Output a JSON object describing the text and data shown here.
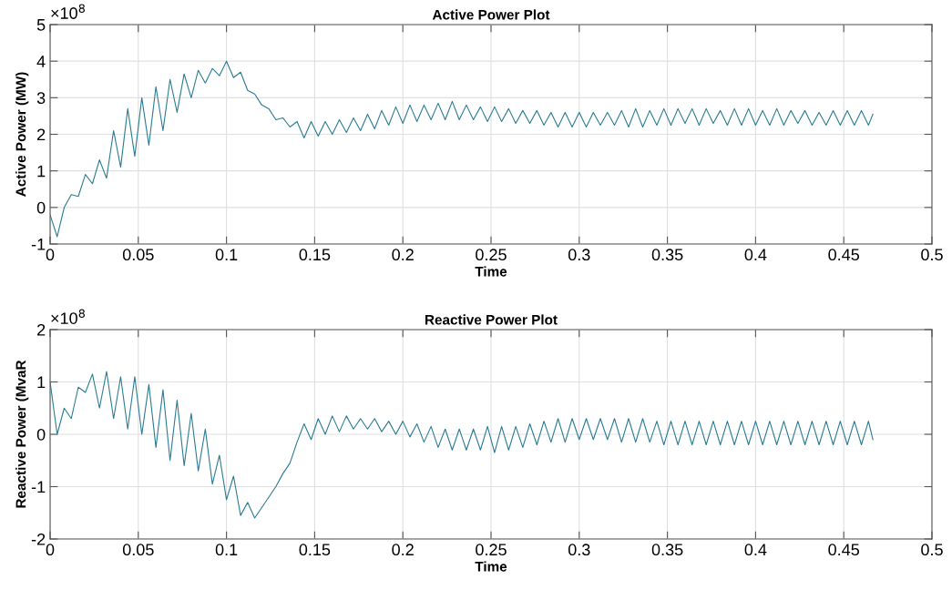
{
  "chart_data": [
    {
      "type": "line",
      "title": "Active Power Plot",
      "xlabel": "Time",
      "ylabel": "Active Power (MW)",
      "annotations": [
        "×10$^{8}$"
      ],
      "grid": true,
      "xlim": [
        0,
        0.5
      ],
      "xticks": [
        0,
        0.05,
        0.1,
        0.15,
        0.2,
        0.25,
        0.3,
        0.35,
        0.4,
        0.45,
        0.5
      ],
      "ylim": [
        -1,
        5
      ],
      "yticks": [
        -1,
        0,
        1,
        2,
        3,
        4,
        5
      ],
      "x": [
        0,
        0.004,
        0.008,
        0.012,
        0.016,
        0.02,
        0.024,
        0.028,
        0.032,
        0.036,
        0.04,
        0.044,
        0.048,
        0.052,
        0.056,
        0.06,
        0.064,
        0.068,
        0.072,
        0.076,
        0.08,
        0.084,
        0.088,
        0.092,
        0.096,
        0.1,
        0.104,
        0.108,
        0.112,
        0.116,
        0.12,
        0.124,
        0.128,
        0.132,
        0.136,
        0.14,
        0.144,
        0.148,
        0.152,
        0.156,
        0.16,
        0.164,
        0.168,
        0.172,
        0.176,
        0.18,
        0.184,
        0.188,
        0.192,
        0.196,
        0.2,
        0.204,
        0.208,
        0.212,
        0.216,
        0.22,
        0.224,
        0.228,
        0.232,
        0.236,
        0.24,
        0.244,
        0.248,
        0.252,
        0.256,
        0.26,
        0.264,
        0.268,
        0.272,
        0.276,
        0.28,
        0.284,
        0.288,
        0.292,
        0.296,
        0.3,
        0.304,
        0.308,
        0.312,
        0.316,
        0.32,
        0.324,
        0.328,
        0.332,
        0.336,
        0.34,
        0.344,
        0.348,
        0.352,
        0.356,
        0.36,
        0.364,
        0.368,
        0.372,
        0.376,
        0.38,
        0.384,
        0.388,
        0.392,
        0.396,
        0.4,
        0.404,
        0.408,
        0.412,
        0.416,
        0.42,
        0.424,
        0.428,
        0.432,
        0.436,
        0.44,
        0.444,
        0.448,
        0.452,
        0.456,
        0.46,
        0.464,
        0.4665
      ],
      "series": [
        {
          "color": "#2a7d94",
          "values": [
            -0.2,
            -0.8,
            0.0,
            0.35,
            0.3,
            0.9,
            0.65,
            1.3,
            0.8,
            2.1,
            1.1,
            2.7,
            1.4,
            3.0,
            1.7,
            3.3,
            2.1,
            3.5,
            2.6,
            3.65,
            3.0,
            3.75,
            3.4,
            3.8,
            3.6,
            4.0,
            3.55,
            3.7,
            3.2,
            3.1,
            2.8,
            2.7,
            2.4,
            2.45,
            2.2,
            2.35,
            1.9,
            2.35,
            1.95,
            2.35,
            2.0,
            2.4,
            2.05,
            2.45,
            2.1,
            2.55,
            2.15,
            2.65,
            2.25,
            2.75,
            2.3,
            2.8,
            2.35,
            2.8,
            2.4,
            2.85,
            2.4,
            2.9,
            2.4,
            2.8,
            2.4,
            2.75,
            2.35,
            2.75,
            2.35,
            2.7,
            2.3,
            2.65,
            2.3,
            2.65,
            2.25,
            2.6,
            2.2,
            2.6,
            2.2,
            2.6,
            2.2,
            2.6,
            2.25,
            2.6,
            2.25,
            2.65,
            2.2,
            2.7,
            2.2,
            2.65,
            2.25,
            2.7,
            2.25,
            2.7,
            2.3,
            2.7,
            2.25,
            2.7,
            2.3,
            2.65,
            2.25,
            2.7,
            2.25,
            2.7,
            2.25,
            2.65,
            2.25,
            2.7,
            2.25,
            2.65,
            2.3,
            2.65,
            2.25,
            2.6,
            2.25,
            2.65,
            2.25,
            2.65,
            2.25,
            2.65,
            2.25,
            2.55
          ]
        }
      ]
    },
    {
      "type": "line",
      "title": "Reactive Power Plot",
      "xlabel": "Time",
      "ylabel": "Reactive Power (MvaR",
      "annotations": [
        "×10$^{8}$"
      ],
      "grid": true,
      "xlim": [
        0,
        0.5
      ],
      "xticks": [
        0,
        0.05,
        0.1,
        0.15,
        0.2,
        0.25,
        0.3,
        0.35,
        0.4,
        0.45,
        0.5
      ],
      "ylim": [
        -2,
        2
      ],
      "yticks": [
        -2,
        -1,
        0,
        1,
        2
      ],
      "x": [
        0,
        0.004,
        0.008,
        0.012,
        0.016,
        0.02,
        0.024,
        0.028,
        0.032,
        0.036,
        0.04,
        0.044,
        0.048,
        0.052,
        0.056,
        0.06,
        0.064,
        0.068,
        0.072,
        0.076,
        0.08,
        0.084,
        0.088,
        0.092,
        0.096,
        0.1,
        0.104,
        0.108,
        0.112,
        0.116,
        0.12,
        0.124,
        0.128,
        0.132,
        0.136,
        0.14,
        0.144,
        0.148,
        0.152,
        0.156,
        0.16,
        0.164,
        0.168,
        0.172,
        0.176,
        0.18,
        0.184,
        0.188,
        0.192,
        0.196,
        0.2,
        0.204,
        0.208,
        0.212,
        0.216,
        0.22,
        0.224,
        0.228,
        0.232,
        0.236,
        0.24,
        0.244,
        0.248,
        0.252,
        0.256,
        0.26,
        0.264,
        0.268,
        0.272,
        0.276,
        0.28,
        0.284,
        0.288,
        0.292,
        0.296,
        0.3,
        0.304,
        0.308,
        0.312,
        0.316,
        0.32,
        0.324,
        0.328,
        0.332,
        0.336,
        0.34,
        0.344,
        0.348,
        0.352,
        0.356,
        0.36,
        0.364,
        0.368,
        0.372,
        0.376,
        0.38,
        0.384,
        0.388,
        0.392,
        0.396,
        0.4,
        0.404,
        0.408,
        0.412,
        0.416,
        0.42,
        0.424,
        0.428,
        0.432,
        0.436,
        0.44,
        0.444,
        0.448,
        0.452,
        0.456,
        0.46,
        0.464,
        0.4665
      ],
      "series": [
        {
          "color": "#2a7d94",
          "values": [
            1.0,
            0.0,
            0.5,
            0.3,
            0.9,
            0.8,
            1.15,
            0.5,
            1.2,
            0.3,
            1.1,
            0.1,
            1.1,
            0.0,
            0.95,
            -0.25,
            0.85,
            -0.5,
            0.65,
            -0.6,
            0.4,
            -0.7,
            0.1,
            -0.95,
            -0.4,
            -1.25,
            -0.8,
            -1.55,
            -1.3,
            -1.6,
            -1.4,
            -1.2,
            -1.0,
            -0.75,
            -0.55,
            -0.15,
            0.2,
            -0.1,
            0.3,
            0.0,
            0.35,
            0.05,
            0.35,
            0.1,
            0.3,
            0.1,
            0.3,
            0.05,
            0.25,
            0.0,
            0.25,
            -0.05,
            0.2,
            -0.15,
            0.15,
            -0.25,
            0.1,
            -0.3,
            0.1,
            -0.3,
            0.1,
            -0.3,
            0.15,
            -0.35,
            0.15,
            -0.3,
            0.15,
            -0.25,
            0.2,
            -0.2,
            0.25,
            -0.15,
            0.3,
            -0.15,
            0.3,
            -0.1,
            0.3,
            -0.1,
            0.3,
            -0.1,
            0.3,
            -0.15,
            0.3,
            -0.15,
            0.3,
            -0.15,
            0.25,
            -0.2,
            0.25,
            -0.2,
            0.25,
            -0.2,
            0.25,
            -0.2,
            0.25,
            -0.2,
            0.25,
            -0.2,
            0.25,
            -0.2,
            0.25,
            -0.2,
            0.25,
            -0.2,
            0.25,
            -0.2,
            0.25,
            -0.2,
            0.25,
            -0.2,
            0.25,
            -0.2,
            0.25,
            -0.2,
            0.25,
            -0.2,
            0.25,
            -0.1
          ]
        }
      ]
    }
  ]
}
